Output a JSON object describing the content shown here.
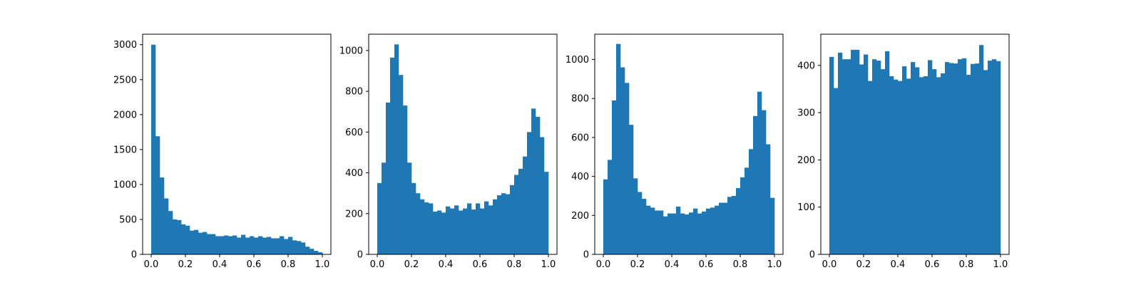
{
  "colors": {
    "bar": "#1f77b4",
    "axis": "#000000",
    "background": "#ffffff"
  },
  "chart_data": [
    {
      "type": "bar",
      "subtype": "histogram",
      "bins": 40,
      "xlim": [
        -0.05,
        1.05
      ],
      "ylim": [
        0,
        3150
      ],
      "xticks": [
        0.0,
        0.2,
        0.4,
        0.6,
        0.8,
        1.0
      ],
      "xtick_labels": [
        "0.0",
        "0.2",
        "0.4",
        "0.6",
        "0.8",
        "1.0"
      ],
      "yticks": [
        0,
        500,
        1000,
        1500,
        2000,
        2500,
        3000
      ],
      "ytick_labels": [
        "0",
        "500",
        "1000",
        "1500",
        "2000",
        "2500",
        "3000"
      ],
      "values": [
        3000,
        1690,
        1100,
        800,
        620,
        500,
        490,
        430,
        410,
        340,
        350,
        310,
        320,
        290,
        290,
        260,
        260,
        270,
        260,
        270,
        240,
        280,
        240,
        260,
        240,
        260,
        240,
        250,
        230,
        230,
        260,
        220,
        250,
        200,
        190,
        170,
        110,
        80,
        50,
        30
      ]
    },
    {
      "type": "bar",
      "subtype": "histogram",
      "bins": 40,
      "xlim": [
        -0.05,
        1.05
      ],
      "ylim": [
        0,
        1080
      ],
      "xticks": [
        0.0,
        0.2,
        0.4,
        0.6,
        0.8,
        1.0
      ],
      "xtick_labels": [
        "0.0",
        "0.2",
        "0.4",
        "0.6",
        "0.8",
        "1.0"
      ],
      "yticks": [
        0,
        200,
        400,
        600,
        800,
        1000
      ],
      "ytick_labels": [
        "0",
        "200",
        "400",
        "600",
        "800",
        "1000"
      ],
      "values": [
        350,
        450,
        745,
        965,
        1030,
        880,
        730,
        450,
        350,
        300,
        270,
        255,
        250,
        210,
        215,
        205,
        235,
        225,
        240,
        215,
        225,
        250,
        220,
        250,
        225,
        260,
        240,
        270,
        290,
        300,
        295,
        340,
        390,
        420,
        480,
        600,
        715,
        675,
        575,
        405
      ]
    },
    {
      "type": "bar",
      "subtype": "histogram",
      "bins": 40,
      "xlim": [
        -0.05,
        1.05
      ],
      "ylim": [
        0,
        1130
      ],
      "xticks": [
        0.0,
        0.2,
        0.4,
        0.6,
        0.8,
        1.0
      ],
      "xtick_labels": [
        "0.0",
        "0.2",
        "0.4",
        "0.6",
        "0.8",
        "1.0"
      ],
      "yticks": [
        0,
        200,
        400,
        600,
        800,
        1000
      ],
      "ytick_labels": [
        "0",
        "200",
        "400",
        "600",
        "800",
        "1000"
      ],
      "values": [
        385,
        485,
        790,
        1080,
        960,
        880,
        665,
        390,
        320,
        285,
        250,
        240,
        225,
        225,
        195,
        210,
        210,
        245,
        210,
        205,
        215,
        235,
        210,
        220,
        235,
        240,
        250,
        265,
        265,
        295,
        300,
        340,
        395,
        445,
        540,
        710,
        835,
        740,
        565,
        290
      ]
    },
    {
      "type": "bar",
      "subtype": "histogram",
      "bins": 40,
      "xlim": [
        -0.05,
        1.05
      ],
      "ylim": [
        0,
        466
      ],
      "xticks": [
        0.0,
        0.2,
        0.4,
        0.6,
        0.8,
        1.0
      ],
      "xtick_labels": [
        "0.0",
        "0.2",
        "0.4",
        "0.6",
        "0.8",
        "1.0"
      ],
      "yticks": [
        0,
        100,
        200,
        300,
        400
      ],
      "ytick_labels": [
        "0",
        "100",
        "200",
        "300",
        "400"
      ],
      "values": [
        418,
        352,
        427,
        413,
        413,
        433,
        433,
        402,
        423,
        367,
        413,
        410,
        392,
        430,
        377,
        370,
        367,
        398,
        372,
        407,
        396,
        375,
        377,
        411,
        392,
        375,
        383,
        407,
        405,
        404,
        413,
        415,
        380,
        403,
        404,
        443,
        390,
        410,
        413,
        409
      ]
    }
  ]
}
